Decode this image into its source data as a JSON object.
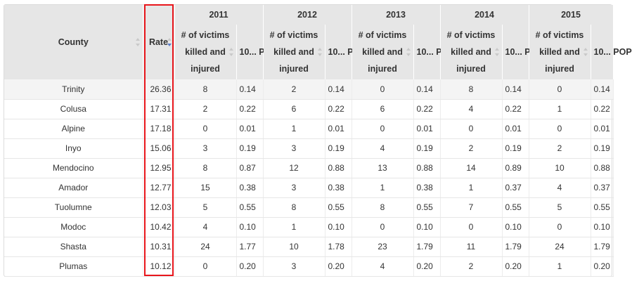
{
  "columns": {
    "county": "County",
    "rate": "Rate",
    "years": [
      "2011",
      "2012",
      "2013",
      "2014",
      "2015"
    ],
    "victims_label": "# of victims killed and injured",
    "pop_label": "10... POP"
  },
  "rows": [
    {
      "county": "Trinity",
      "rate": "26.36",
      "v": [
        "8",
        "2",
        "0",
        "8",
        "0"
      ],
      "p": [
        "0.14",
        "0.14",
        "0.14",
        "0.14",
        "0.14"
      ]
    },
    {
      "county": "Colusa",
      "rate": "17.31",
      "v": [
        "2",
        "6",
        "6",
        "4",
        "1"
      ],
      "p": [
        "0.22",
        "0.22",
        "0.22",
        "0.22",
        "0.22"
      ]
    },
    {
      "county": "Alpine",
      "rate": "17.18",
      "v": [
        "0",
        "1",
        "0",
        "0",
        "0"
      ],
      "p": [
        "0.01",
        "0.01",
        "0.01",
        "0.01",
        "0.01"
      ]
    },
    {
      "county": "Inyo",
      "rate": "15.06",
      "v": [
        "3",
        "3",
        "4",
        "2",
        "2"
      ],
      "p": [
        "0.19",
        "0.19",
        "0.19",
        "0.19",
        "0.19"
      ]
    },
    {
      "county": "Mendocino",
      "rate": "12.95",
      "v": [
        "8",
        "12",
        "13",
        "14",
        "10"
      ],
      "p": [
        "0.87",
        "0.88",
        "0.88",
        "0.89",
        "0.88"
      ]
    },
    {
      "county": "Amador",
      "rate": "12.77",
      "v": [
        "15",
        "3",
        "1",
        "1",
        "4"
      ],
      "p": [
        "0.38",
        "0.38",
        "0.38",
        "0.37",
        "0.37"
      ]
    },
    {
      "county": "Tuolumne",
      "rate": "12.03",
      "v": [
        "5",
        "8",
        "8",
        "7",
        "5"
      ],
      "p": [
        "0.55",
        "0.55",
        "0.55",
        "0.55",
        "0.55"
      ]
    },
    {
      "county": "Modoc",
      "rate": "10.42",
      "v": [
        "4",
        "1",
        "0",
        "0",
        "0"
      ],
      "p": [
        "0.10",
        "0.10",
        "0.10",
        "0.10",
        "0.10"
      ]
    },
    {
      "county": "Shasta",
      "rate": "10.31",
      "v": [
        "24",
        "10",
        "23",
        "11",
        "24"
      ],
      "p": [
        "1.77",
        "1.78",
        "1.79",
        "1.79",
        "1.79"
      ]
    },
    {
      "county": "Plumas",
      "rate": "10.12",
      "v": [
        "0",
        "3",
        "4",
        "2",
        "1"
      ],
      "p": [
        "0.20",
        "0.20",
        "0.20",
        "0.20",
        "0.20"
      ]
    }
  ],
  "colors": {
    "header_bg": "#e6e6e6",
    "highlight": "#e8161c",
    "sort_active": "#5b7dc7"
  }
}
